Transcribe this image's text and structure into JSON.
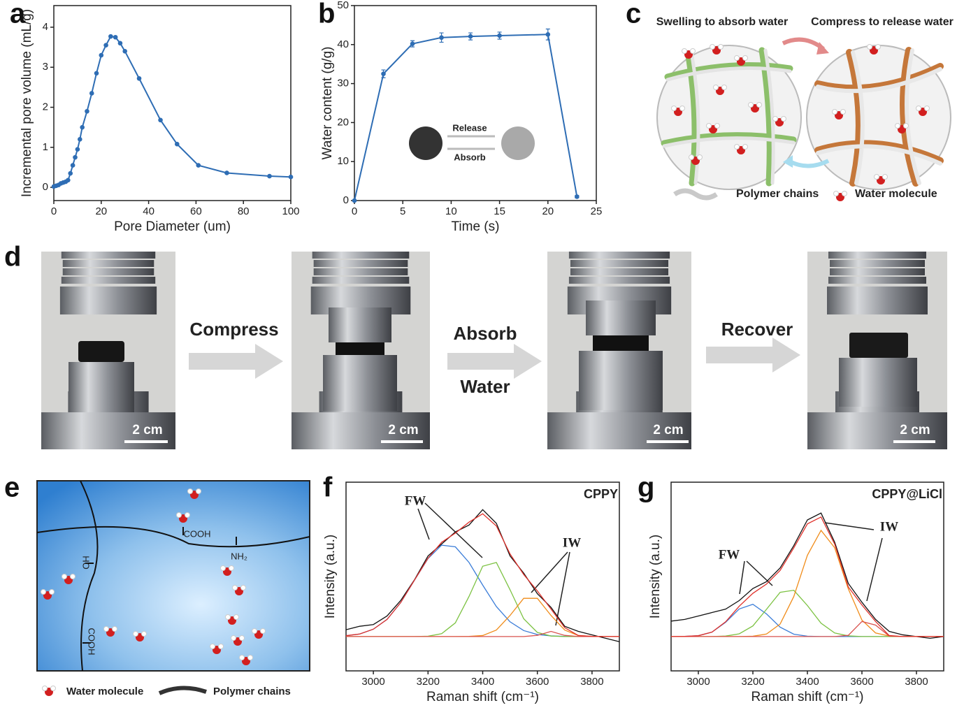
{
  "chart_data": [
    {
      "type": "line",
      "panel": "a",
      "xlabel": "Pore Diameter (um)",
      "ylabel": "Incremental pore volume (mL/g)",
      "x": [
        0,
        1,
        2,
        3,
        4,
        5,
        6,
        7,
        8,
        9,
        10,
        11,
        12,
        14,
        16,
        18,
        20,
        22,
        24,
        26,
        28,
        30,
        36,
        45,
        52,
        61,
        73,
        91,
        100
      ],
      "series": [
        {
          "color": "#2e6db4",
          "markers": true,
          "values": [
            0.02,
            0.04,
            0.06,
            0.1,
            0.12,
            0.14,
            0.18,
            0.35,
            0.55,
            0.75,
            0.95,
            1.2,
            1.5,
            1.9,
            2.35,
            2.85,
            3.3,
            3.55,
            3.77,
            3.75,
            3.6,
            3.4,
            2.72,
            1.68,
            1.08,
            0.55,
            0.36,
            0.28,
            0.26
          ]
        }
      ],
      "xlim": [
        0,
        100
      ],
      "xticks": [
        0,
        20,
        40,
        60,
        80,
        100
      ],
      "ylim": [
        -0.33,
        4.54
      ],
      "yticks": [
        0,
        1,
        2,
        3,
        4
      ]
    },
    {
      "type": "line",
      "panel": "b",
      "xlabel": "Time (s)",
      "ylabel": "Water content (g/g)",
      "x": [
        0,
        3,
        6,
        9,
        12,
        15,
        20,
        23
      ],
      "series": [
        {
          "color": "#2e6db4",
          "markers": true,
          "values": [
            0,
            32.5,
            40.2,
            41.8,
            42.1,
            42.3,
            42.6,
            1
          ],
          "errors": [
            0,
            1,
            0.8,
            1.2,
            0.9,
            0.9,
            1.4,
            0.3
          ]
        }
      ],
      "annotations": [
        "Release",
        "Absorb"
      ],
      "xlim": [
        0,
        25
      ],
      "xticks": [
        0,
        5,
        10,
        15,
        20,
        25
      ],
      "ylim": [
        0,
        50
      ],
      "yticks": [
        0,
        10,
        20,
        30,
        40,
        50
      ]
    },
    {
      "type": "line",
      "panel": "f",
      "label": "CPPY",
      "xlabel": "Raman shift (cm⁻¹)",
      "ylabel": "Intensity (a.u.)",
      "annotations": [
        "FW",
        "IW"
      ],
      "x": [
        2900,
        2950,
        3000,
        3050,
        3100,
        3150,
        3200,
        3250,
        3300,
        3350,
        3400,
        3450,
        3500,
        3550,
        3600,
        3650,
        3700,
        3750,
        3800,
        3850,
        3900
      ],
      "series": [
        {
          "color": "#111111",
          "values": [
            4,
            6,
            7,
            12,
            21,
            33,
            47,
            54,
            61,
            65,
            74,
            66,
            47,
            37,
            25,
            17,
            6,
            3,
            1,
            -1,
            -3
          ]
        },
        {
          "color": "#3b7dd8",
          "values": [
            0.5,
            1.5,
            4.3,
            10,
            19.8,
            32.8,
            45.5,
            53.3,
            52.3,
            43.2,
            30,
            17.5,
            8.6,
            3.5,
            1.2,
            0.4,
            0.1,
            0,
            0,
            0,
            0
          ]
        },
        {
          "color": "#7cc242",
          "values": [
            0,
            0,
            0,
            0,
            0,
            0,
            0.2,
            1.7,
            8,
            23.4,
            41,
            43.2,
            27.3,
            10.4,
            2.4,
            0.3,
            0,
            0,
            0,
            0,
            0
          ]
        },
        {
          "color": "#f08c1a",
          "values": [
            0,
            0,
            0,
            0,
            0,
            0,
            0,
            0,
            0,
            0.1,
            0.6,
            3.8,
            12.3,
            22.3,
            22.3,
            12.3,
            3.8,
            0.6,
            0.1,
            0,
            0
          ]
        },
        {
          "color": "#d9534f",
          "values": [
            0,
            0,
            0,
            0,
            0,
            0,
            0,
            0,
            0,
            0,
            0,
            0,
            0,
            0,
            0.7,
            3,
            0.7,
            0,
            0,
            0,
            0
          ]
        },
        {
          "color": "#e0302a",
          "values": [
            0.5,
            1.5,
            4.3,
            10,
            19.8,
            32.8,
            45.7,
            55,
            60.3,
            66.7,
            71.6,
            64.5,
            48.2,
            36.2,
            26.6,
            16,
            5.2,
            0.6,
            0.1,
            0,
            0
          ]
        }
      ],
      "xlim": [
        2900,
        3900
      ],
      "xticks": [
        3000,
        3200,
        3400,
        3600,
        3800
      ],
      "ylim": [
        -20,
        90
      ]
    },
    {
      "type": "line",
      "panel": "g",
      "label": "CPPY@LiCl",
      "xlabel": "Raman shift (cm⁻¹)",
      "ylabel": "Intensity (a.u.)",
      "annotations": [
        "FW",
        "IW"
      ],
      "x": [
        2900,
        2950,
        3000,
        3050,
        3100,
        3150,
        3200,
        3250,
        3300,
        3350,
        3400,
        3450,
        3500,
        3550,
        3600,
        3650,
        3700,
        3750,
        3800,
        3850,
        3900
      ],
      "series": [
        {
          "color": "#111111",
          "values": [
            9,
            10,
            12,
            14,
            16,
            21,
            28,
            32,
            40,
            53,
            68,
            72,
            55,
            31,
            20,
            10,
            3,
            1,
            0,
            -1,
            0
          ]
        },
        {
          "color": "#3b7dd8",
          "values": [
            0,
            0.1,
            0.5,
            2.6,
            8.3,
            16.1,
            18.8,
            13.2,
            5.5,
            1.4,
            0.2,
            0,
            0,
            0,
            0,
            0,
            0,
            0,
            0,
            0,
            0
          ]
        },
        {
          "color": "#7cc242",
          "values": [
            0,
            0,
            0,
            0,
            0.3,
            1.6,
            6.2,
            15.9,
            25.8,
            27,
            18.1,
            7.8,
            2.1,
            0.4,
            0,
            0,
            0,
            0,
            0,
            0,
            0
          ]
        },
        {
          "color": "#f08c1a",
          "values": [
            0,
            0,
            0,
            0,
            0,
            0,
            0.2,
            1.5,
            7.3,
            23.3,
            47.4,
            61.9,
            51.8,
            27.8,
            9.6,
            2.1,
            0.3,
            0,
            0,
            0,
            0
          ]
        },
        {
          "color": "#d9534f",
          "values": [
            0,
            0,
            0,
            0,
            0,
            0,
            0,
            0,
            0,
            0,
            0,
            0,
            0,
            0.7,
            8.8,
            6.7,
            0.3,
            0,
            0,
            0,
            0
          ]
        },
        {
          "color": "#e0302a",
          "values": [
            0,
            0.1,
            0.5,
            2.6,
            8.6,
            17.7,
            25.2,
            30.6,
            38.6,
            51.7,
            65.7,
            69.7,
            53.9,
            28.9,
            18.4,
            8.8,
            0.6,
            0,
            0,
            0,
            0
          ]
        }
      ],
      "xlim": [
        2900,
        3900
      ],
      "xticks": [
        3000,
        3200,
        3400,
        3600,
        3800
      ],
      "ylim": [
        -20,
        90
      ]
    }
  ],
  "panel_c": {
    "letter": "c",
    "left_title": "Swelling to absorb water",
    "right_title": "Compress to release water",
    "legend": [
      "Polymer chains",
      "Water molecule"
    ]
  },
  "panel_d": {
    "letter": "d",
    "steps": [
      "Compress",
      "Absorb",
      "Water",
      "Recover"
    ],
    "scale_bars": [
      "2 cm",
      "2 cm",
      "2 cm",
      "2 cm"
    ]
  },
  "panel_e": {
    "letter": "e",
    "groups": [
      "COOH",
      "NH₂",
      "HO",
      "COOH"
    ],
    "legend": [
      "Water molecule",
      "Polymer chains"
    ]
  }
}
